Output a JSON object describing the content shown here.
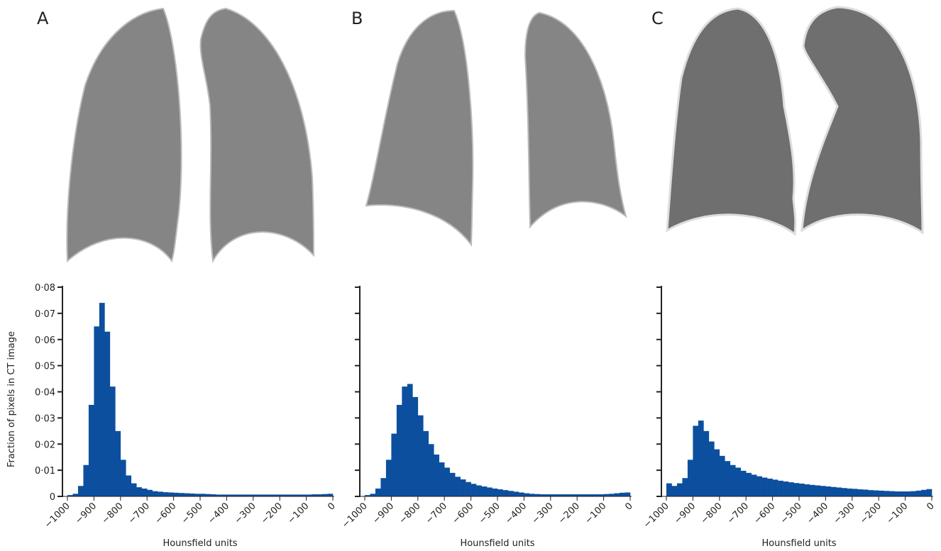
{
  "chart_data": [
    {
      "type": "histogram",
      "title": "A",
      "ylabel": "Fraction of pixels in CT image",
      "xlabel": "Hounsfield units",
      "color": "#0b4f9e",
      "bins": [
        -1000,
        -980,
        -960,
        -940,
        -920,
        -900,
        -880,
        -860,
        -840,
        -820,
        -800,
        -780,
        -760,
        -740,
        -720,
        -700,
        -680,
        -660,
        -640,
        -620,
        -600,
        -580,
        -560,
        -540,
        -520,
        -500,
        -480,
        -460,
        -440,
        -420,
        -400,
        -380,
        -360,
        -340,
        -320,
        -300,
        -280,
        -260,
        -240,
        -220,
        -200,
        -180,
        -160,
        -140,
        -120,
        -100,
        -80,
        -60,
        -40,
        -20,
        0
      ],
      "values": [
        0.0005,
        0.001,
        0.004,
        0.012,
        0.035,
        0.065,
        0.074,
        0.063,
        0.042,
        0.025,
        0.014,
        0.008,
        0.005,
        0.0035,
        0.003,
        0.0025,
        0.002,
        0.0018,
        0.0016,
        0.0015,
        0.0014,
        0.0013,
        0.0012,
        0.0011,
        0.001,
        0.001,
        0.0009,
        0.0008,
        0.0007,
        0.0007,
        0.0007,
        0.0007,
        0.0007,
        0.0007,
        0.0007,
        0.0007,
        0.0007,
        0.0007,
        0.0007,
        0.0007,
        0.0007,
        0.0007,
        0.0007,
        0.0007,
        0.0007,
        0.0007,
        0.0008,
        0.0008,
        0.0009,
        0.001
      ],
      "xlim": [
        -1000,
        0
      ],
      "ylim": [
        0,
        0.08
      ],
      "xticks": [
        {
          "value": -1000,
          "label": "−1000"
        },
        {
          "value": -900,
          "label": "−900"
        },
        {
          "value": -800,
          "label": "−800"
        },
        {
          "value": -700,
          "label": "−700"
        },
        {
          "value": -600,
          "label": "−600"
        },
        {
          "value": -500,
          "label": "−500"
        },
        {
          "value": -400,
          "label": "−400"
        },
        {
          "value": -300,
          "label": "−300"
        },
        {
          "value": -200,
          "label": "−200"
        },
        {
          "value": -100,
          "label": "−100"
        },
        0
      ],
      "yticks": [
        0,
        {
          "value": 0.01,
          "label": "0·01"
        },
        {
          "value": 0.02,
          "label": "0·02"
        },
        {
          "value": 0.03,
          "label": "0·03"
        },
        {
          "value": 0.04,
          "label": "0·04"
        },
        {
          "value": 0.05,
          "label": "0·05"
        },
        {
          "value": 0.06,
          "label": "0·06"
        },
        {
          "value": 0.07,
          "label": "0·07"
        },
        {
          "value": 0.08,
          "label": "0·08"
        }
      ],
      "ytick_labels": true
    },
    {
      "type": "histogram",
      "title": "B",
      "xlabel": "Hounsfield units",
      "color": "#0b4f9e",
      "bins": [
        -1000,
        -980,
        -960,
        -940,
        -920,
        -900,
        -880,
        -860,
        -840,
        -820,
        -800,
        -780,
        -760,
        -740,
        -720,
        -700,
        -680,
        -660,
        -640,
        -620,
        -600,
        -580,
        -560,
        -540,
        -520,
        -500,
        -480,
        -460,
        -440,
        -420,
        -400,
        -380,
        -360,
        -340,
        -320,
        -300,
        -280,
        -260,
        -240,
        -220,
        -200,
        -180,
        -160,
        -140,
        -120,
        -100,
        -80,
        -60,
        -40,
        -20,
        0
      ],
      "values": [
        0.0005,
        0.001,
        0.003,
        0.007,
        0.014,
        0.024,
        0.035,
        0.042,
        0.043,
        0.038,
        0.031,
        0.025,
        0.02,
        0.016,
        0.013,
        0.011,
        0.009,
        0.0075,
        0.0065,
        0.0055,
        0.0048,
        0.0042,
        0.0038,
        0.0034,
        0.003,
        0.0027,
        0.0024,
        0.0021,
        0.0018,
        0.0015,
        0.0012,
        0.001,
        0.0009,
        0.0008,
        0.0008,
        0.0008,
        0.0008,
        0.0008,
        0.0008,
        0.0008,
        0.0008,
        0.0008,
        0.0008,
        0.0008,
        0.0008,
        0.0009,
        0.001,
        0.0012,
        0.0014,
        0.0015
      ],
      "xlim": [
        -1000,
        0
      ],
      "ylim": [
        0,
        0.08
      ],
      "xticks": [
        {
          "value": -1000,
          "label": "−1000"
        },
        {
          "value": -900,
          "label": "−900"
        },
        {
          "value": -800,
          "label": "−800"
        },
        {
          "value": -700,
          "label": "−700"
        },
        {
          "value": -600,
          "label": "−600"
        },
        {
          "value": -500,
          "label": "−500"
        },
        {
          "value": -400,
          "label": "−400"
        },
        {
          "value": -300,
          "label": "−300"
        },
        {
          "value": -200,
          "label": "−200"
        },
        {
          "value": -100,
          "label": "−100"
        },
        0
      ],
      "yticks": [
        0,
        0.01,
        0.02,
        0.03,
        0.04,
        0.05,
        0.06,
        0.07,
        0.08
      ],
      "ytick_labels": false
    },
    {
      "type": "histogram",
      "title": "C",
      "xlabel": "Hounsfield units",
      "color": "#0b4f9e",
      "bins": [
        -1000,
        -980,
        -960,
        -940,
        -920,
        -900,
        -880,
        -860,
        -840,
        -820,
        -800,
        -780,
        -760,
        -740,
        -720,
        -700,
        -680,
        -660,
        -640,
        -620,
        -600,
        -580,
        -560,
        -540,
        -520,
        -500,
        -480,
        -460,
        -440,
        -420,
        -400,
        -380,
        -360,
        -340,
        -320,
        -300,
        -280,
        -260,
        -240,
        -220,
        -200,
        -180,
        -160,
        -140,
        -120,
        -100,
        -80,
        -60,
        -40,
        -20,
        0
      ],
      "values": [
        0.005,
        0.004,
        0.005,
        0.007,
        0.014,
        0.027,
        0.029,
        0.025,
        0.021,
        0.018,
        0.0155,
        0.0135,
        0.012,
        0.011,
        0.0098,
        0.009,
        0.0083,
        0.0077,
        0.0072,
        0.0068,
        0.0064,
        0.006,
        0.0057,
        0.0054,
        0.0051,
        0.0049,
        0.0046,
        0.0044,
        0.0042,
        0.004,
        0.0038,
        0.0036,
        0.0034,
        0.0032,
        0.003,
        0.0029,
        0.0027,
        0.0026,
        0.0024,
        0.0023,
        0.0022,
        0.0021,
        0.002,
        0.0019,
        0.0019,
        0.0019,
        0.002,
        0.0022,
        0.0025,
        0.0028
      ],
      "xlim": [
        -1000,
        0
      ],
      "ylim": [
        0,
        0.08
      ],
      "xticks": [
        {
          "value": -1000,
          "label": "−1000"
        },
        {
          "value": -900,
          "label": "−900"
        },
        {
          "value": -800,
          "label": "−800"
        },
        {
          "value": -700,
          "label": "−700"
        },
        {
          "value": -600,
          "label": "−600"
        },
        {
          "value": -500,
          "label": "−500"
        },
        {
          "value": -400,
          "label": "−400"
        },
        {
          "value": -300,
          "label": "−300"
        },
        {
          "value": -200,
          "label": "−200"
        },
        {
          "value": -100,
          "label": "−100"
        },
        0
      ],
      "yticks": [
        0,
        0.01,
        0.02,
        0.03,
        0.04,
        0.05,
        0.06,
        0.07,
        0.08
      ],
      "ytick_labels": false
    }
  ]
}
